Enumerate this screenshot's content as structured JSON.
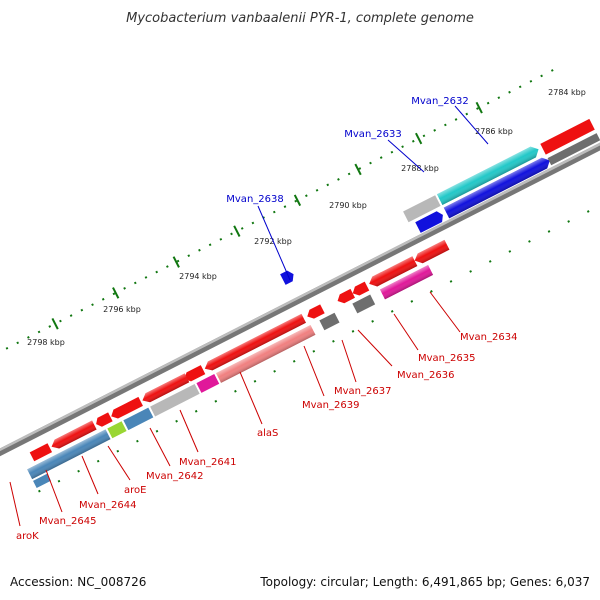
{
  "title": "Mycobacterium vanbaalenii PYR-1, complete genome",
  "footer": {
    "accession": "Accession: NC_008726",
    "summary": "Topology: circular; Length: 6,491,865 bp; Genes: 6,037"
  },
  "scale": {
    "labels": [
      "2784 kbp",
      "2786 kbp",
      "2788 kbp",
      "2790 kbp",
      "2792 kbp",
      "2794 kbp",
      "2796 kbp",
      "2798 kbp"
    ]
  },
  "genes_forward": [
    "Mvan_2632",
    "Mvan_2633",
    "Mvan_2638"
  ],
  "genes_reverse": [
    "Mvan_2634",
    "Mvan_2635",
    "Mvan_2636",
    "Mvan_2637",
    "Mvan_2639",
    "alaS",
    "Mvan_2641",
    "Mvan_2642",
    "aroE",
    "Mvan_2644",
    "Mvan_2645",
    "aroK"
  ],
  "colors": {
    "red": "#ee1111",
    "blue": "#1111dd",
    "cyan": "#22c8c8",
    "steel": "#4a86b8",
    "pink": "#e8709a",
    "magenta": "#e0189a",
    "gray": "#6e6e6e",
    "light_gray": "#b8b8b8",
    "lime": "#99d633",
    "tick_green": "#117711"
  }
}
